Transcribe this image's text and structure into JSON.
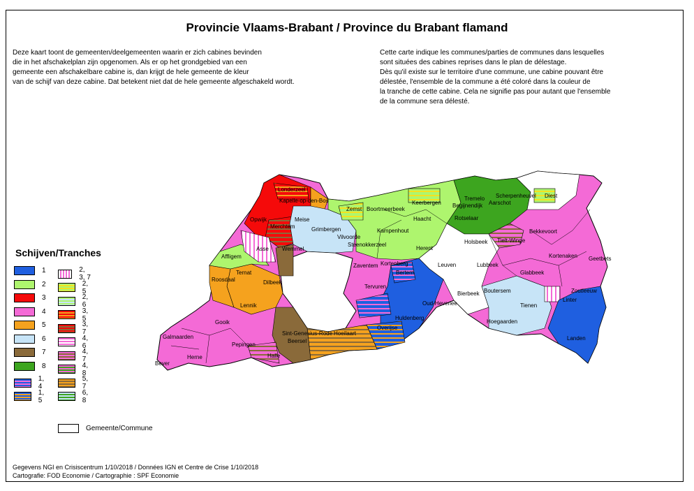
{
  "title": "Provincie Vlaams-Brabant / Province du Brabant flamand",
  "intro": {
    "nl": "Deze kaart toont de gemeenten/deelgemeenten waarin er zich cabines bevinden\n die in het afschakelplan zijn opgenomen. Als er op het grondgebied van een\n gemeente  een afschakelbare  cabine is, dan krijgt de hele gemeente  de kleur\nvan de schijf van deze cabine. Dat betekent niet dat de hele gemeente afgeschakeld wordt.",
    "fr": "Cette carte indique les communes/parties de communes dans lesquelles\nsont situées des cabines reprises dans le plan de délestage.\nDès qu'il existe sur le territoire d'une commune, une cabine pouvant être\ndélestée,  l'ensemble de la commune  a été coloré dans la couleur de\n la tranche  de cette cabine.  Cela ne signifie pas pour autant que  l'ensemble\nde la commune sera délesté."
  },
  "legend": {
    "title": "Schijven/Tranches",
    "items": [
      {
        "label": "1",
        "colors": [
          "#1f5fe0"
        ]
      },
      {
        "label": "2",
        "colors": [
          "#aef56e"
        ]
      },
      {
        "label": "3",
        "colors": [
          "#f50a0a"
        ]
      },
      {
        "label": "4",
        "colors": [
          "#f46ad6"
        ]
      },
      {
        "label": "5",
        "colors": [
          "#f5a21e"
        ]
      },
      {
        "label": "6",
        "colors": [
          "#c7e4f7"
        ]
      },
      {
        "label": "7",
        "colors": [
          "#8a6a3a"
        ]
      },
      {
        "label": "8",
        "colors": [
          "#3da51f"
        ]
      },
      {
        "label": "1, 4",
        "colors": [
          "#1f5fe0",
          "#f46ad6"
        ]
      },
      {
        "label": "1, 5",
        "colors": [
          "#1f5fe0",
          "#f5a21e"
        ]
      },
      {
        "label": "2, 3, 7",
        "colors": [
          "#ffffff",
          "#f46ad6"
        ],
        "vertical": true
      },
      {
        "label": "2, 5",
        "colors": [
          "#aef56e",
          "#f5e21e"
        ]
      },
      {
        "label": "2, 6",
        "colors": [
          "#aef56e",
          "#c7e4f7"
        ]
      },
      {
        "label": "3, 5",
        "colors": [
          "#f50a0a",
          "#f5a21e"
        ]
      },
      {
        "label": "3, 7",
        "colors": [
          "#f50a0a",
          "#8a6a3a"
        ]
      },
      {
        "label": "4, 6",
        "colors": [
          "#f46ad6",
          "#ffffff"
        ]
      },
      {
        "label": "4, 7",
        "colors": [
          "#f46ad6",
          "#8a6a3a"
        ]
      },
      {
        "label": "4, 8",
        "colors": [
          "#f46ad6",
          "#3da51f"
        ]
      },
      {
        "label": "5, 7",
        "colors": [
          "#f5a21e",
          "#8a6a3a"
        ]
      },
      {
        "label": "6, 8",
        "colors": [
          "#c7e4f7",
          "#3da51f"
        ]
      }
    ],
    "commune_label": "Gemeente/Commune"
  },
  "places": [
    {
      "name": "Londerzeel",
      "color": "#f50a0a"
    },
    {
      "name": "Kapelle-op-den-Bos",
      "color": "#f5a21e"
    },
    {
      "name": "Opwijk",
      "color": "#f50a0a"
    },
    {
      "name": "Merchtem",
      "color": "#f50a0a"
    },
    {
      "name": "Meise",
      "color": "#c7e4f7"
    },
    {
      "name": "Zemst",
      "color": "#aef56e"
    },
    {
      "name": "Boortmeerbeek",
      "color": "#aef56e"
    },
    {
      "name": "Keerbergen",
      "color": "#aef56e"
    },
    {
      "name": "Tremelo",
      "color": "#3da51f"
    },
    {
      "name": "Scherpenheuvel",
      "color": "#3da51f"
    },
    {
      "name": "Diest",
      "color": "#ffffff"
    },
    {
      "name": "Begijnendijk",
      "color": "#3da51f"
    },
    {
      "name": "Aarschot",
      "color": "#3da51f"
    },
    {
      "name": "Grimbergen",
      "color": "#c7e4f7"
    },
    {
      "name": "Vilvoorde",
      "color": "#c7e4f7"
    },
    {
      "name": "Steenokkerzeel",
      "color": "#aef56e"
    },
    {
      "name": "Kampenhout",
      "color": "#aef56e"
    },
    {
      "name": "Haacht",
      "color": "#aef56e"
    },
    {
      "name": "Rotselaar",
      "color": "#aef56e"
    },
    {
      "name": "Holsbeek",
      "color": "#ffffff"
    },
    {
      "name": "Tielt-Winge",
      "color": "#f46ad6"
    },
    {
      "name": "Bekkevoort",
      "color": "#f46ad6"
    },
    {
      "name": "Asse",
      "color": "#ffffff"
    },
    {
      "name": "Wemmel",
      "color": "#8a6a3a"
    },
    {
      "name": "Herent",
      "color": "#aef56e"
    },
    {
      "name": "Leuven",
      "color": "#ffffff"
    },
    {
      "name": "Lubbeek",
      "color": "#f46ad6"
    },
    {
      "name": "Kortenaken",
      "color": "#f46ad6"
    },
    {
      "name": "Geetbets",
      "color": "#f46ad6"
    },
    {
      "name": "Zaventem",
      "color": "#f46ad6"
    },
    {
      "name": "Kortenberg",
      "color": "#f46ad6"
    },
    {
      "name": "Bertem",
      "color": "#1f5fe0"
    },
    {
      "name": "Glabbeek",
      "color": "#f46ad6"
    },
    {
      "name": "Affligem",
      "color": "#aef56e"
    },
    {
      "name": "Ternat",
      "color": "#aef56e"
    },
    {
      "name": "Dilbeek",
      "color": "#f5a21e"
    },
    {
      "name": "Roosdaal",
      "color": "#f5a21e"
    },
    {
      "name": "Tervuren",
      "color": "#1f5fe0"
    },
    {
      "name": "Bierbeek",
      "color": "#ffffff"
    },
    {
      "name": "Boutersem",
      "color": "#c7e4f7"
    },
    {
      "name": "Tienen",
      "color": "#c7e4f7"
    },
    {
      "name": "Linter",
      "color": "#f46ad6"
    },
    {
      "name": "Zoutleeuw",
      "color": "#1f5fe0"
    },
    {
      "name": "Lennik",
      "color": "#f5a21e"
    },
    {
      "name": "Oud-Heverlee",
      "color": "#ffffff"
    },
    {
      "name": "Huldenberg",
      "color": "#1f5fe0"
    },
    {
      "name": "Hoegaarden",
      "color": "#c7e4f7"
    },
    {
      "name": "Gooik",
      "color": "#f46ad6"
    },
    {
      "name": "Overijse",
      "color": "#1f5fe0"
    },
    {
      "name": "Landen",
      "color": "#1f5fe0"
    },
    {
      "name": "Galmaarden",
      "color": "#f46ad6"
    },
    {
      "name": "Sint-Genesius-Rode",
      "color": "#8a6a3a"
    },
    {
      "name": "Hoeilaart",
      "color": "#f5a21e"
    },
    {
      "name": "Beersel",
      "color": "#8a6a3a"
    },
    {
      "name": "Pepingen",
      "color": "#f46ad6"
    },
    {
      "name": "Herne",
      "color": "#f46ad6"
    },
    {
      "name": "Halle",
      "color": "#f46ad6"
    },
    {
      "name": "Bever",
      "color": "#f46ad6"
    }
  ],
  "footer": {
    "source": "Gegevens NGI en Crisiscentrum 1/10/2018 / Données IGN et Centre de Crise 1/10/2018",
    "cartography": "Cartografie: FOD Economie / Cartographie : SPF Economie"
  }
}
